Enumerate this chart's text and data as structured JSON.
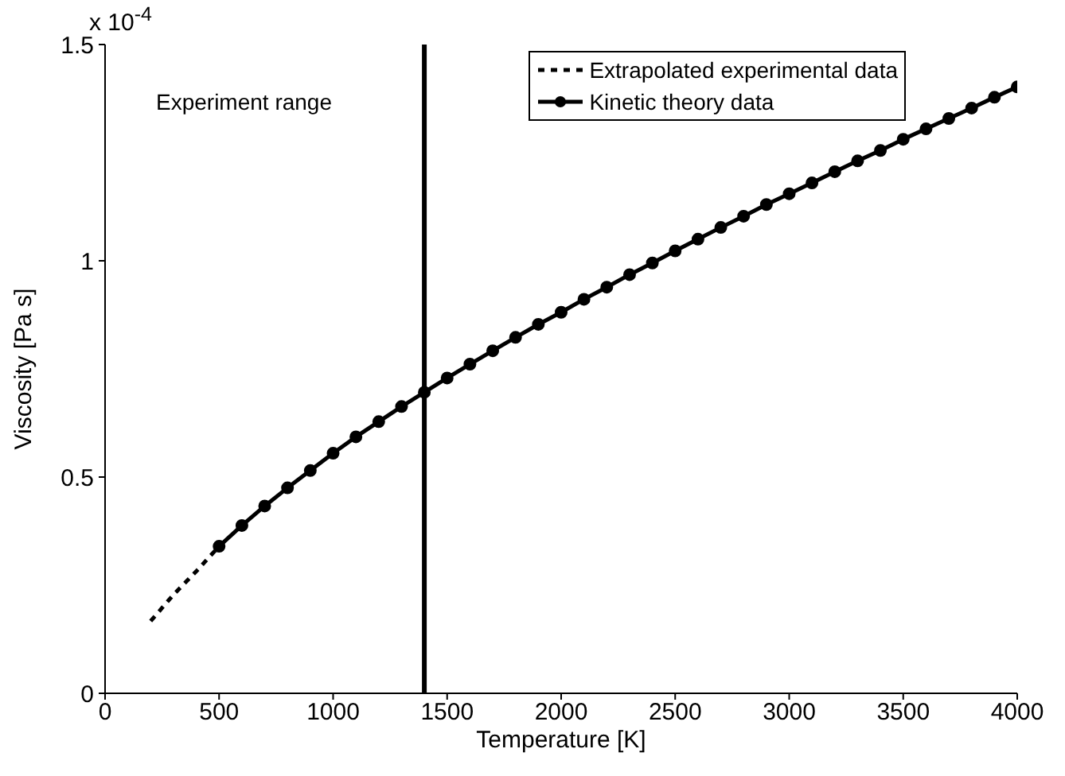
{
  "chart_data": {
    "type": "line",
    "xlabel": "Temperature [K]",
    "ylabel": "Viscosity [Pa s]",
    "xlim": [
      0,
      4000
    ],
    "xticks": [
      0,
      500,
      1000,
      1500,
      2000,
      2500,
      3000,
      3500,
      4000
    ],
    "ylim": [
      0,
      1.5
    ],
    "yticks": [
      0,
      0.5,
      1,
      1.5
    ],
    "grid": false,
    "legend": "top right",
    "annotations": [
      "x 10$^{-4}$",
      "Experiment range"
    ],
    "ref_lines": [
      {
        "axis": "x",
        "value": 1400,
        "color": "#000000"
      }
    ],
    "series": [
      {
        "name": "Extrapolated experimental data",
        "color": "#000000",
        "line_style": "dashed",
        "marker": "none",
        "x": [
          200,
          300,
          400,
          500
        ],
        "values": [
          0.167,
          0.228,
          0.282,
          0.34
        ]
      },
      {
        "name": "Kinetic theory data",
        "color": "#000000",
        "line_style": "solid",
        "marker": "circle",
        "x": [
          500,
          600,
          700,
          800,
          900,
          1000,
          1100,
          1200,
          1300,
          1400,
          1500,
          1600,
          1700,
          1800,
          1900,
          2000,
          2100,
          2200,
          2300,
          2400,
          2500,
          2600,
          2700,
          2800,
          2900,
          3000,
          3100,
          3200,
          3300,
          3400,
          3500,
          3600,
          3700,
          3800,
          3900,
          4000
        ],
        "values": [
          0.34,
          0.388,
          0.433,
          0.475,
          0.515,
          0.555,
          0.593,
          0.628,
          0.663,
          0.696,
          0.729,
          0.761,
          0.792,
          0.823,
          0.853,
          0.881,
          0.911,
          0.939,
          0.968,
          0.995,
          1.023,
          1.05,
          1.077,
          1.103,
          1.13,
          1.155,
          1.18,
          1.206,
          1.231,
          1.255,
          1.281,
          1.305,
          1.329,
          1.353,
          1.378,
          1.402
        ]
      }
    ]
  }
}
